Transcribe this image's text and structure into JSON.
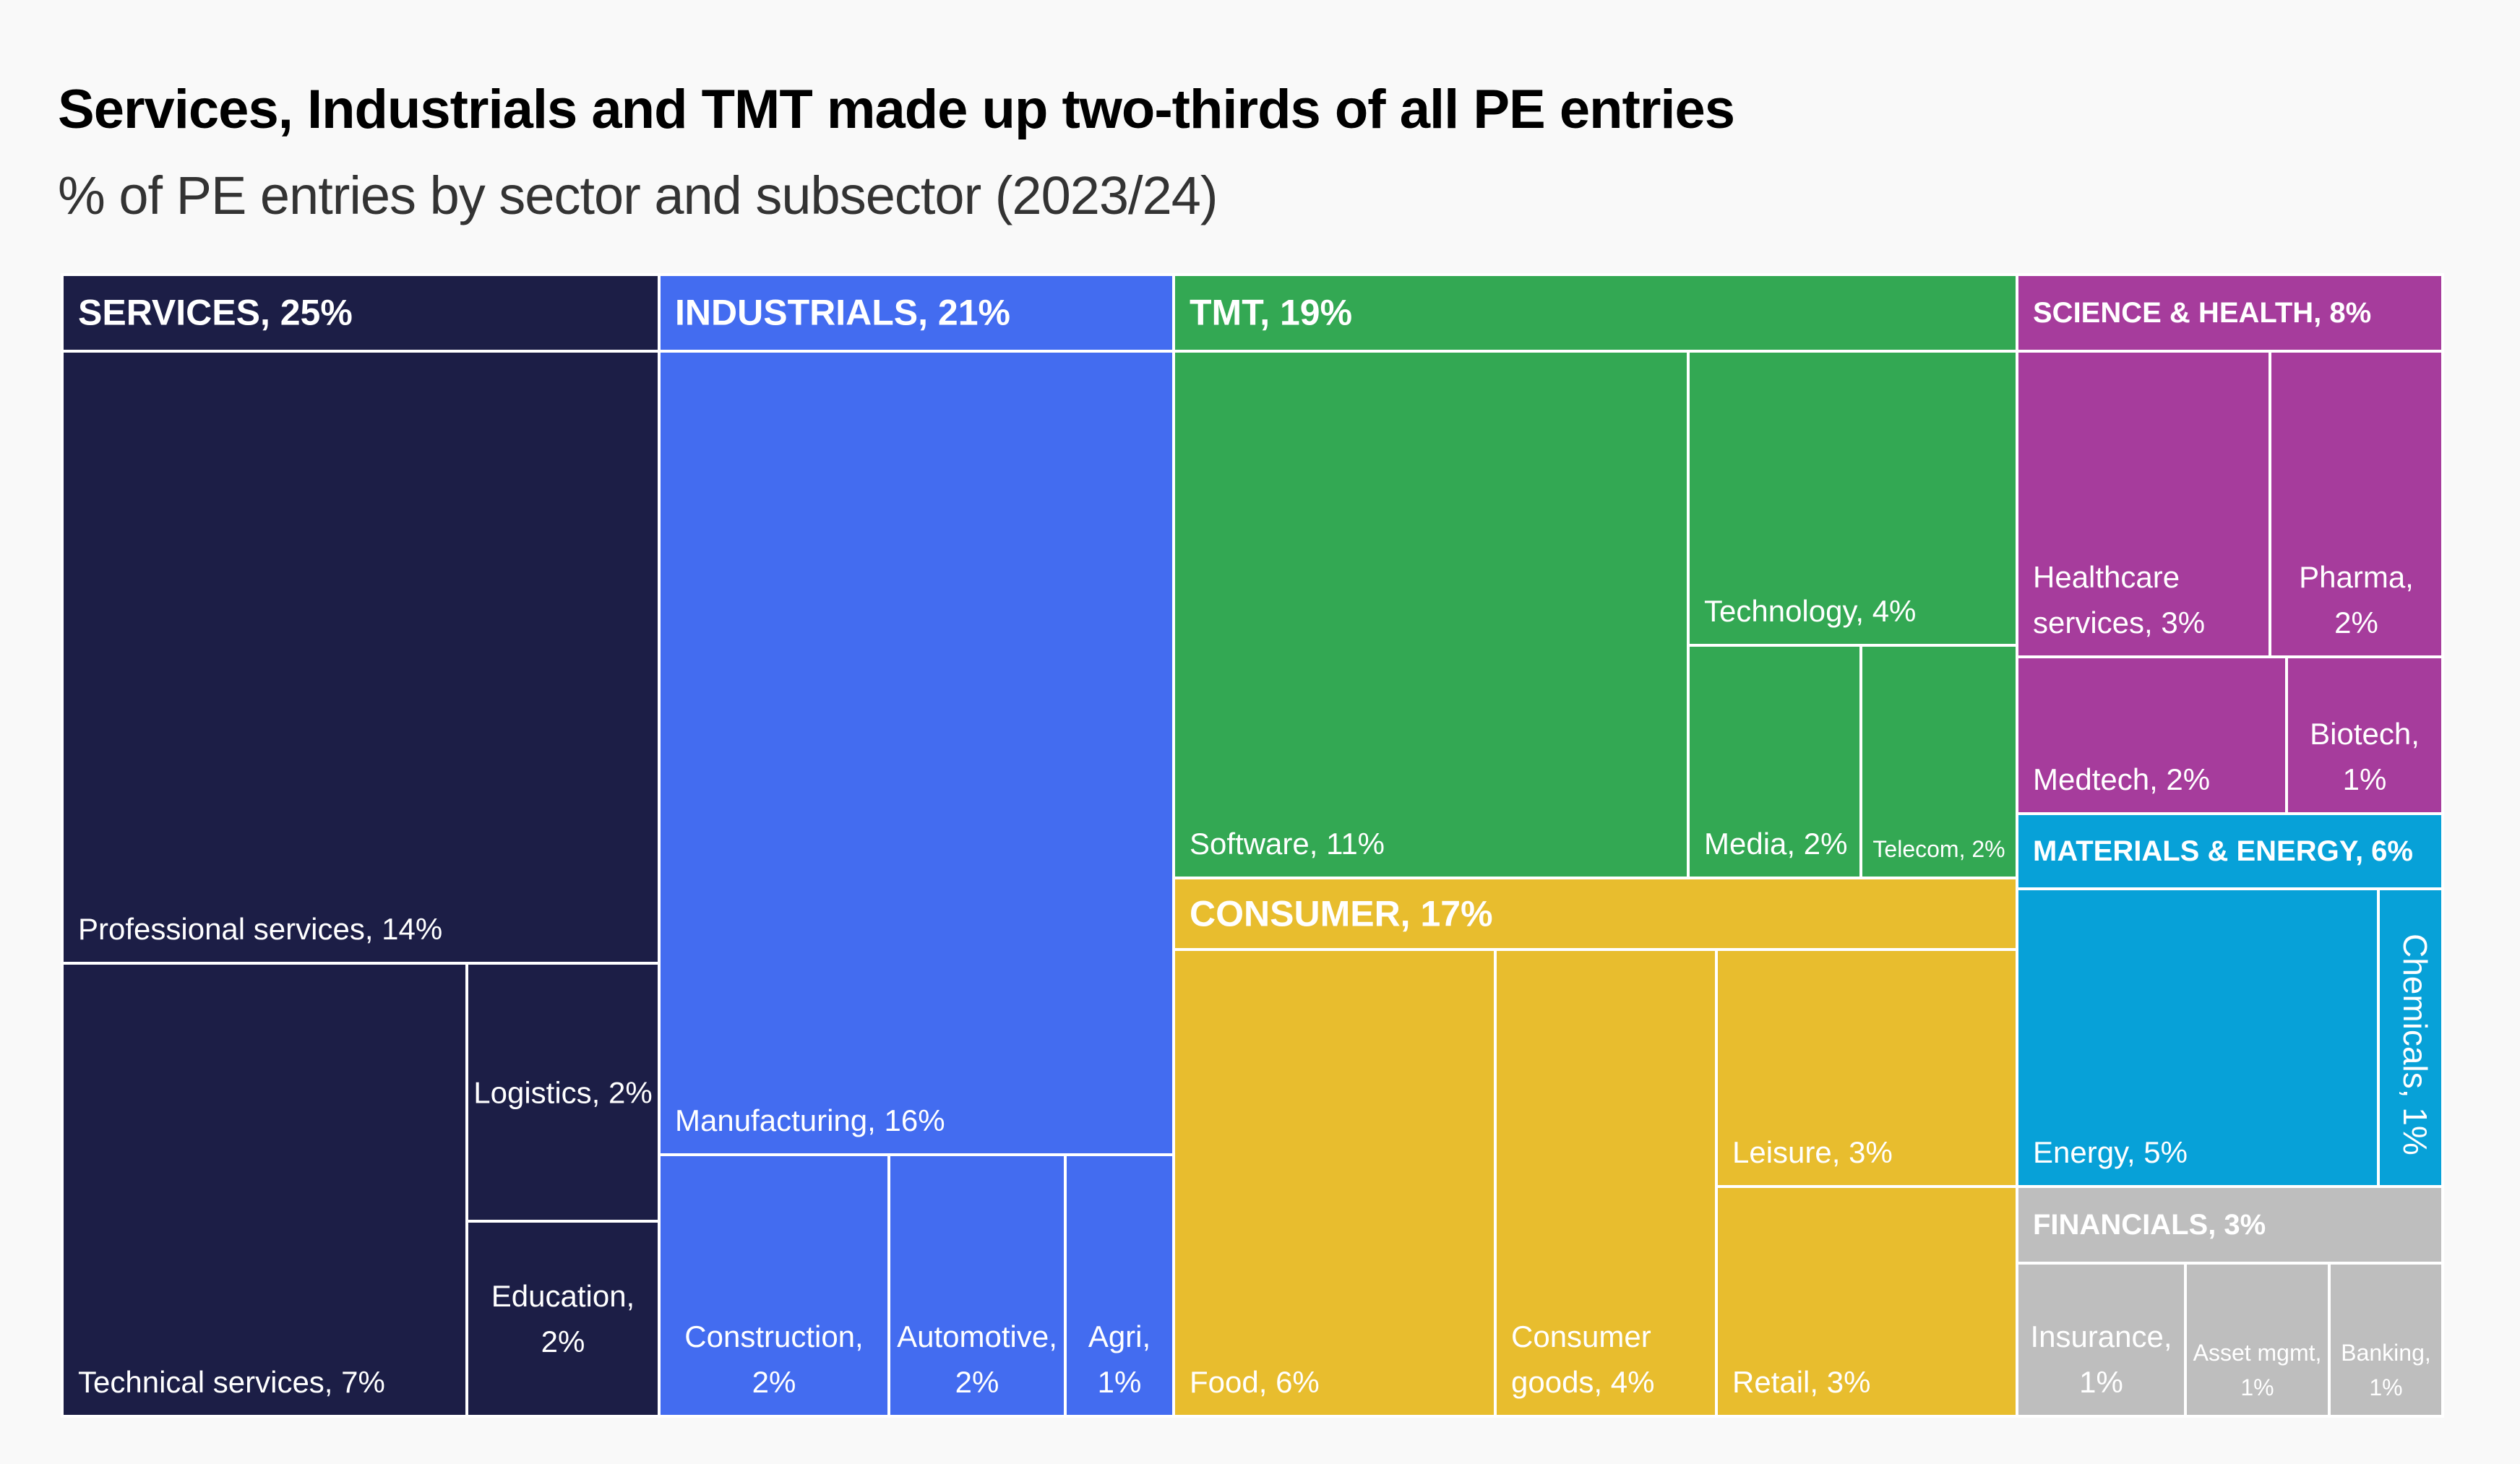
{
  "title": "Services, Industrials and TMT made up two-thirds of all PE entries",
  "subtitle": "% of PE entries by sector and subsector (2023/24)",
  "chart_data": {
    "type": "treemap",
    "title": "Services, Industrials and TMT made up two-thirds of all PE entries",
    "subtitle": "% of PE entries by sector and subsector (2023/24)",
    "unit": "%",
    "sectors": [
      {
        "name": "SERVICES",
        "value": 25,
        "label": "SERVICES, 25%",
        "color": "#1c1e46",
        "subsectors": [
          {
            "name": "Professional services",
            "value": 14,
            "label": "Professional services, 14%"
          },
          {
            "name": "Technical services",
            "value": 7,
            "label": "Technical services, 7%"
          },
          {
            "name": "Logistics",
            "value": 2,
            "label": "Logistics, 2%"
          },
          {
            "name": "Education",
            "value": 2,
            "label": "Education, 2%"
          }
        ]
      },
      {
        "name": "INDUSTRIALS",
        "value": 21,
        "label": "INDUSTRIALS, 21%",
        "color": "#436cf0",
        "subsectors": [
          {
            "name": "Manufacturing",
            "value": 16,
            "label": "Manufacturing, 16%"
          },
          {
            "name": "Construction",
            "value": 2,
            "label": "Construction, 2%"
          },
          {
            "name": "Automotive",
            "value": 2,
            "label": "Automotive, 2%"
          },
          {
            "name": "Agri",
            "value": 1,
            "label": "Agri, 1%"
          }
        ]
      },
      {
        "name": "TMT",
        "value": 19,
        "label": "TMT, 19%",
        "color": "#33a853",
        "subsectors": [
          {
            "name": "Software",
            "value": 11,
            "label": "Software, 11%"
          },
          {
            "name": "Technology",
            "value": 4,
            "label": "Technology, 4%"
          },
          {
            "name": "Media",
            "value": 2,
            "label": "Media, 2%"
          },
          {
            "name": "Telecom",
            "value": 2,
            "label": "Telecom, 2%"
          }
        ]
      },
      {
        "name": "CONSUMER",
        "value": 17,
        "label": "CONSUMER, 17%",
        "color": "#e8bd2e",
        "subsectors": [
          {
            "name": "Food",
            "value": 6,
            "label": "Food, 6%"
          },
          {
            "name": "Consumer goods",
            "value": 4,
            "label": "Consumer goods, 4%"
          },
          {
            "name": "Leisure",
            "value": 3,
            "label": "Leisure, 3%"
          },
          {
            "name": "Retail",
            "value": 3,
            "label": "Retail, 3%"
          }
        ]
      },
      {
        "name": "SCIENCE & HEALTH",
        "value": 8,
        "label": "SCIENCE & HEALTH, 8%",
        "color": "#a63c9c",
        "subsectors": [
          {
            "name": "Healthcare services",
            "value": 3,
            "label": "Healthcare services, 3%"
          },
          {
            "name": "Pharma",
            "value": 2,
            "label": "Pharma, 2%"
          },
          {
            "name": "Medtech",
            "value": 2,
            "label": "Medtech, 2%"
          },
          {
            "name": "Biotech",
            "value": 1,
            "label": "Biotech, 1%"
          }
        ]
      },
      {
        "name": "MATERIALS & ENERGY",
        "value": 6,
        "label": "MATERIALS & ENERGY, 6%",
        "color": "#07a1d8",
        "subsectors": [
          {
            "name": "Energy",
            "value": 5,
            "label": "Energy, 5%"
          },
          {
            "name": "Chemicals",
            "value": 1,
            "label": "Chemicals, 1%"
          }
        ]
      },
      {
        "name": "FINANCIALS",
        "value": 3,
        "label": "FINANCIALS, 3%",
        "color": "#bebebe",
        "subsectors": [
          {
            "name": "Insurance",
            "value": 1,
            "label": "Insurance, 1%"
          },
          {
            "name": "Asset mgmt",
            "value": 1,
            "label": "Asset mgmt, 1%"
          },
          {
            "name": "Banking",
            "value": 1,
            "label": "Banking, 1%"
          }
        ]
      }
    ]
  }
}
